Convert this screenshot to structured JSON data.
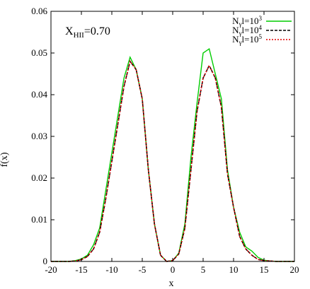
{
  "chart_data": {
    "type": "line",
    "xlabel": "x",
    "ylabel": "f(x)",
    "xlim": [
      -20,
      20
    ],
    "ylim": [
      0,
      0.06
    ],
    "xticks": [
      "-20",
      "-15",
      "-10",
      "-5",
      "0",
      "5",
      "10",
      "15",
      "20"
    ],
    "yticks": [
      "0",
      "0.01",
      "0.02",
      "0.03",
      "0.04",
      "0.05",
      "0.06"
    ],
    "annotation": {
      "main": "X",
      "sub": "HII",
      "rest": "=0.70"
    },
    "legend_position": "top-right",
    "grid": false,
    "x": [
      -20,
      -19,
      -18,
      -17,
      -16,
      -15,
      -14,
      -13,
      -12,
      -11,
      -10,
      -9,
      -8,
      -7,
      -6,
      -5,
      -4,
      -3,
      -2,
      -1,
      0,
      1,
      2,
      3,
      4,
      5,
      6,
      7,
      8,
      9,
      10,
      11,
      12,
      13,
      14,
      15,
      16,
      17,
      18,
      19,
      20
    ],
    "series": [
      {
        "name": "N_γ l=10^3",
        "legend": {
          "base": "N",
          "sub": "γ",
          "mid": "l=10",
          "sup": "3"
        },
        "color": "#00cc00",
        "dash": "",
        "values": [
          0,
          0,
          0,
          0,
          0.0002,
          0.0006,
          0.0015,
          0.004,
          0.008,
          0.017,
          0.026,
          0.035,
          0.044,
          0.049,
          0.046,
          0.039,
          0.022,
          0.009,
          0.0015,
          0,
          0.0002,
          0.002,
          0.009,
          0.025,
          0.038,
          0.05,
          0.051,
          0.045,
          0.039,
          0.022,
          0.013,
          0.007,
          0.0035,
          0.0025,
          0.001,
          0.0003,
          0.0001,
          0,
          0,
          0,
          0
        ]
      },
      {
        "name": "N_γ l=10^4",
        "legend": {
          "base": "N",
          "sub": "γ",
          "mid": "l=10",
          "sup": "4"
        },
        "color": "#000000",
        "dash": "4,2",
        "values": [
          0,
          0,
          0,
          0,
          0.0001,
          0.0004,
          0.0012,
          0.003,
          0.007,
          0.015,
          0.024,
          0.033,
          0.042,
          0.048,
          0.046,
          0.039,
          0.022,
          0.009,
          0.0015,
          0,
          0.0002,
          0.0018,
          0.008,
          0.022,
          0.036,
          0.044,
          0.047,
          0.044,
          0.037,
          0.021,
          0.013,
          0.006,
          0.003,
          0.0015,
          0.0005,
          0.0002,
          0.0001,
          0,
          0,
          0,
          0
        ]
      },
      {
        "name": "N_γ l=10^5",
        "legend": {
          "base": "N",
          "sub": "γ",
          "mid": "l=10",
          "sup": "5"
        },
        "color": "#e00000",
        "dash": "2,2",
        "values": [
          0,
          0,
          0,
          0,
          0.0001,
          0.0004,
          0.0012,
          0.003,
          0.007,
          0.015,
          0.024,
          0.033,
          0.042,
          0.048,
          0.046,
          0.039,
          0.022,
          0.009,
          0.0015,
          0,
          0.0002,
          0.0018,
          0.008,
          0.022,
          0.036,
          0.044,
          0.047,
          0.044,
          0.037,
          0.021,
          0.013,
          0.006,
          0.003,
          0.0015,
          0.0005,
          0.0002,
          0.0001,
          0,
          0,
          0,
          0
        ]
      }
    ]
  }
}
